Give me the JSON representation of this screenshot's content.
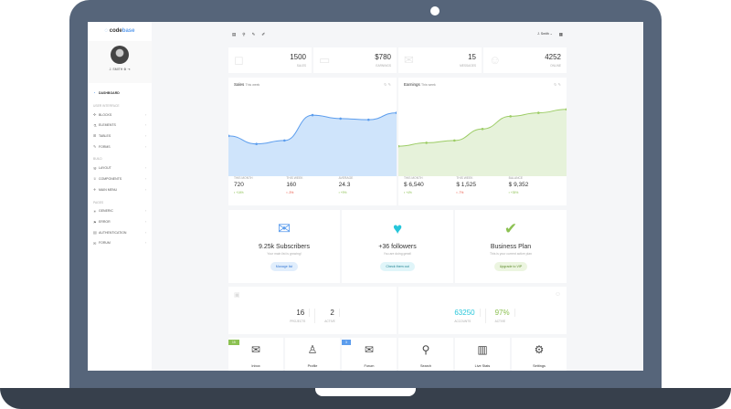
{
  "brand": {
    "prefix": "code",
    "suffix": "base"
  },
  "user": {
    "name": "J. SMITH",
    "menu_label": "J. Smith"
  },
  "sidebar": {
    "items": [
      {
        "label": "DASHBOARD",
        "icon": "speedometer-icon",
        "active": true
      },
      {
        "header": "USER INTERFACE"
      },
      {
        "label": "BLOCKS",
        "icon": "puzzle-icon"
      },
      {
        "label": "ELEMENTS",
        "icon": "flask-icon"
      },
      {
        "label": "TABLES",
        "icon": "grid-icon"
      },
      {
        "label": "FORMS",
        "icon": "note-icon"
      },
      {
        "header": "BUILD"
      },
      {
        "label": "LAYOUT",
        "icon": "wrench-icon"
      },
      {
        "label": "COMPONENTS",
        "icon": "trophy-icon"
      },
      {
        "label": "MAIN MENU",
        "icon": "pin-icon"
      },
      {
        "header": "PAGES"
      },
      {
        "label": "GENERIC",
        "icon": "bulb-icon"
      },
      {
        "label": "ERROR",
        "icon": "flag-icon"
      },
      {
        "label": "AUTHENTICATION",
        "icon": "lock-icon"
      },
      {
        "label": "FORUM",
        "icon": "chat-icon"
      }
    ]
  },
  "stats": [
    {
      "value": "1500",
      "label": "SALES",
      "icon": "bag-icon"
    },
    {
      "value": "$780",
      "label": "EARNINGS",
      "icon": "wallet-icon"
    },
    {
      "value": "15",
      "label": "MESSAGES",
      "icon": "envelope-icon"
    },
    {
      "value": "4252",
      "label": "ONLINE",
      "icon": "users-icon"
    }
  ],
  "chart_data": [
    {
      "type": "area",
      "title": "Sales",
      "subtitle": "This week",
      "color": "#5c9ded",
      "fill": "#cfe4fb",
      "values": [
        35,
        28,
        31,
        53,
        50,
        49,
        55
      ],
      "summary": [
        {
          "label": "THIS MONTH",
          "value": "720",
          "change": "+16%",
          "dir": "up"
        },
        {
          "label": "THIS WEEK",
          "value": "160",
          "change": "-3%",
          "dir": "down"
        },
        {
          "label": "AVERAGE",
          "value": "24.3",
          "change": "+9%",
          "dir": "up"
        }
      ]
    },
    {
      "type": "area",
      "title": "Earnings",
      "subtitle": "This week",
      "color": "#9ccc65",
      "fill": "#e6f2da",
      "values": [
        26,
        29,
        31,
        41,
        52,
        55,
        58
      ],
      "summary": [
        {
          "label": "THIS MONTH",
          "value": "$ 6,540",
          "change": "+4%",
          "dir": "up"
        },
        {
          "label": "THIS WEEK",
          "value": "$ 1,525",
          "change": "-7%",
          "dir": "down"
        },
        {
          "label": "BALANCE",
          "value": "$ 9,352",
          "change": "+35%",
          "dir": "up"
        }
      ]
    }
  ],
  "cards": [
    {
      "title": "9.25k Subscribers",
      "sub": "Your main list is growing!",
      "button": "Manage list",
      "icon": "envelope-open-icon",
      "color": "#5c9ded",
      "bg": "#e1eefc",
      "fg": "#3a7bd5"
    },
    {
      "title": "+36 followers",
      "sub": "You are doing great!",
      "button": "Check them out",
      "icon": "twitter-icon",
      "color": "#26c6da",
      "bg": "#e0f5f9",
      "fg": "#1a7f8e"
    },
    {
      "title": "Business Plan",
      "sub": "This is your current active plan",
      "button": "Upgrade to VIP",
      "icon": "check-icon",
      "color": "#8cc152",
      "bg": "#ecf5e0",
      "fg": "#5b8a2a"
    }
  ],
  "projects": {
    "count": "16",
    "count_label": "PROJECTS",
    "active": "2",
    "active_label": "ACTIVE"
  },
  "accounts": {
    "count": "63250",
    "count_label": "ACCOUNTS",
    "active": "97%",
    "active_label": "ACTIVE"
  },
  "tiles": [
    {
      "label": "Inbox",
      "icon": "inbox-icon",
      "badge": "15",
      "badge_color": "#8cc152"
    },
    {
      "label": "Profile",
      "icon": "user-icon"
    },
    {
      "label": "Forum",
      "icon": "chat-icon",
      "badge": "3",
      "badge_color": "#5c9ded"
    },
    {
      "label": "Search",
      "icon": "search-icon"
    },
    {
      "label": "Live Stats",
      "icon": "bar-chart-icon"
    },
    {
      "label": "Settings",
      "icon": "gear-icon"
    }
  ]
}
